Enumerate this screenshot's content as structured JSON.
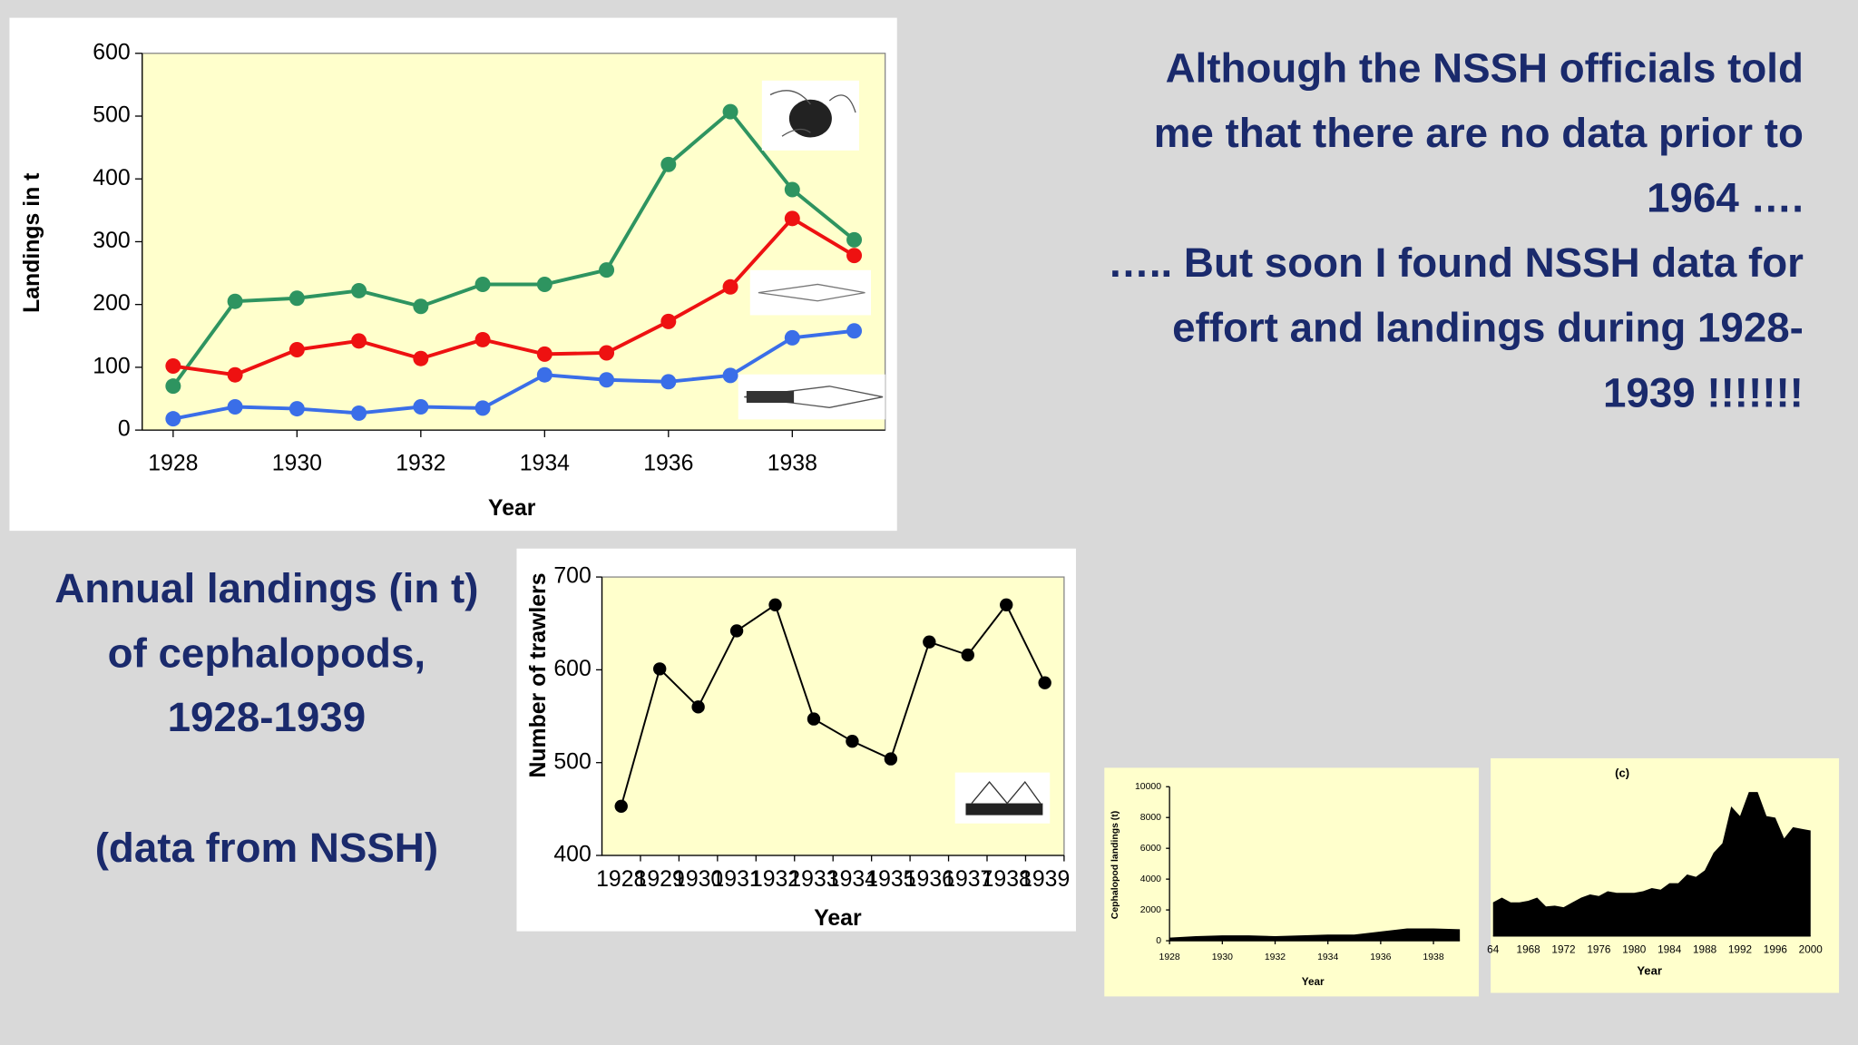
{
  "slide": {
    "right_text": [
      "Although the NSSH officials told",
      "me that there are no data prior to",
      "1964 ….",
      "….. But soon I found NSSH data for",
      "effort and landings during 1928-",
      "1939 !!!!!!!"
    ],
    "left_text": [
      "Annual landings  (in t)",
      "of cephalopods,",
      "1928-1939",
      "(data from NSSH)"
    ]
  },
  "chart_data": [
    {
      "type": "line",
      "x_label": "Year",
      "y_label": "Landings in t",
      "x": [
        1928,
        1929,
        1930,
        1931,
        1932,
        1933,
        1934,
        1935,
        1936,
        1937,
        1938,
        1939
      ],
      "series": [
        {
          "color": "#2e9460",
          "values": [
            70,
            205,
            210,
            222,
            197,
            232,
            232,
            255,
            423,
            507,
            383,
            303
          ]
        },
        {
          "color": "#ee1111",
          "values": [
            102,
            88,
            128,
            142,
            114,
            144,
            121,
            123,
            173,
            228,
            337,
            278
          ]
        },
        {
          "color": "#3a6ee8",
          "values": [
            18,
            37,
            34,
            27,
            37,
            35,
            88,
            80,
            77,
            87,
            147,
            158
          ]
        }
      ],
      "xlim": [
        1927.5,
        1939.5
      ],
      "xticks": [
        1928,
        1930,
        1932,
        1934,
        1936,
        1938
      ],
      "ylim": [
        0,
        600
      ],
      "yticks": [
        0,
        100,
        200,
        300,
        400,
        500,
        600
      ]
    },
    {
      "type": "line",
      "x_label": "Year",
      "y_label": "Number of trawlers",
      "categories": [
        "1928",
        "1929",
        "1930",
        "1931",
        "1932",
        "1933",
        "1934",
        "1935",
        "1936",
        "1937",
        "1938",
        "1939"
      ],
      "series": [
        {
          "color": "#000000",
          "values": [
            453,
            601,
            560,
            642,
            670,
            547,
            523,
            504,
            630,
            616,
            670,
            586
          ]
        }
      ],
      "ylim": [
        400,
        700
      ],
      "yticks": [
        400,
        500,
        600,
        700
      ]
    },
    {
      "type": "area",
      "x_label": "Year",
      "y_label": "Cephalopod landings (t)",
      "x": [
        1928,
        1929,
        1930,
        1931,
        1932,
        1933,
        1934,
        1935,
        1936,
        1937,
        1938,
        1939
      ],
      "series": [
        {
          "color": "#000000",
          "values": [
            200,
            300,
            350,
            350,
            300,
            350,
            400,
            400,
            600,
            800,
            800,
            750
          ]
        }
      ],
      "xlim": [
        1928,
        1939
      ],
      "xticks": [
        1928,
        1930,
        1932,
        1934,
        1936,
        1938
      ],
      "ylim": [
        0,
        10000
      ],
      "yticks": [
        0,
        2000,
        4000,
        6000,
        8000,
        10000
      ]
    },
    {
      "type": "area",
      "title": "(c)",
      "x_label": "Year",
      "x": [
        1964,
        1965,
        1966,
        1967,
        1968,
        1969,
        1970,
        1971,
        1972,
        1973,
        1974,
        1975,
        1976,
        1977,
        1978,
        1979,
        1980,
        1981,
        1982,
        1983,
        1984,
        1985,
        1986,
        1987,
        1988,
        1989,
        1990,
        1991,
        1992,
        1993,
        1994,
        1995,
        1996,
        1997,
        1998,
        1999,
        2000
      ],
      "series": [
        {
          "color": "#000000",
          "values": [
            2100,
            2400,
            2100,
            2100,
            2200,
            2400,
            1850,
            1900,
            1800,
            2100,
            2400,
            2600,
            2500,
            2800,
            2700,
            2700,
            2700,
            2800,
            3000,
            2900,
            3300,
            3300,
            3850,
            3700,
            4100,
            5200,
            5800,
            8100,
            7500,
            9000,
            9000,
            7500,
            7400,
            6100,
            6800,
            6700,
            6600
          ]
        }
      ],
      "xlim": [
        1964,
        2000
      ],
      "xticks": [
        {
          "value": 1964,
          "label": "64"
        },
        1968,
        1972,
        1976,
        1980,
        1984,
        1988,
        1992,
        1996,
        2000
      ],
      "ylim": [
        0,
        10000
      ]
    }
  ]
}
